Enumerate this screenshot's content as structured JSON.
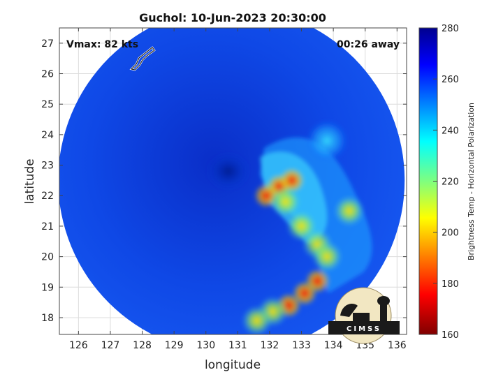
{
  "chart_data": {
    "type": "heatmap",
    "title": "Guchol: 10-Jun-2023 20:30:00",
    "xlabel": "longitude",
    "ylabel": "latitude",
    "xlim": [
      125.4,
      136.3
    ],
    "ylim": [
      17.45,
      27.5
    ],
    "xticks": [
      "126",
      "127",
      "128",
      "129",
      "130",
      "131",
      "132",
      "133",
      "134",
      "135",
      "136"
    ],
    "yticks": [
      "18",
      "19",
      "20",
      "21",
      "22",
      "23",
      "24",
      "25",
      "26",
      "27"
    ],
    "grid": true,
    "annotations": {
      "vmax": "Vmax: 82 kts",
      "time_offset": "00:26 away"
    },
    "swath": {
      "center_lon": 130.8,
      "center_lat": 22.5
    },
    "storm_center": {
      "lon": 130.7,
      "lat": 22.8
    },
    "features": [
      {
        "lon": 132.3,
        "lat": 22.3,
        "value": 202
      },
      {
        "lon": 132.7,
        "lat": 22.5,
        "value": 205
      },
      {
        "lon": 131.9,
        "lat": 22.0,
        "value": 200
      },
      {
        "lon": 132.5,
        "lat": 21.8,
        "value": 215
      },
      {
        "lon": 133.0,
        "lat": 21.0,
        "value": 220
      },
      {
        "lon": 133.5,
        "lat": 20.4,
        "value": 222
      },
      {
        "lon": 133.8,
        "lat": 20.0,
        "value": 215
      },
      {
        "lon": 133.5,
        "lat": 19.2,
        "value": 192
      },
      {
        "lon": 133.1,
        "lat": 18.8,
        "value": 198
      },
      {
        "lon": 132.6,
        "lat": 18.4,
        "value": 205
      },
      {
        "lon": 132.1,
        "lat": 18.2,
        "value": 210
      },
      {
        "lon": 131.6,
        "lat": 17.9,
        "value": 218
      },
      {
        "lon": 134.5,
        "lat": 21.5,
        "value": 225
      },
      {
        "lon": 133.8,
        "lat": 23.8,
        "value": 235
      }
    ],
    "colorbar": {
      "label": "Brightness Temp - Horizontal Polarization",
      "range": [
        160,
        280
      ],
      "ticks": [
        "280",
        "260",
        "240",
        "220",
        "200",
        "180",
        "160"
      ]
    }
  },
  "logo": {
    "text": "CIMSS"
  }
}
